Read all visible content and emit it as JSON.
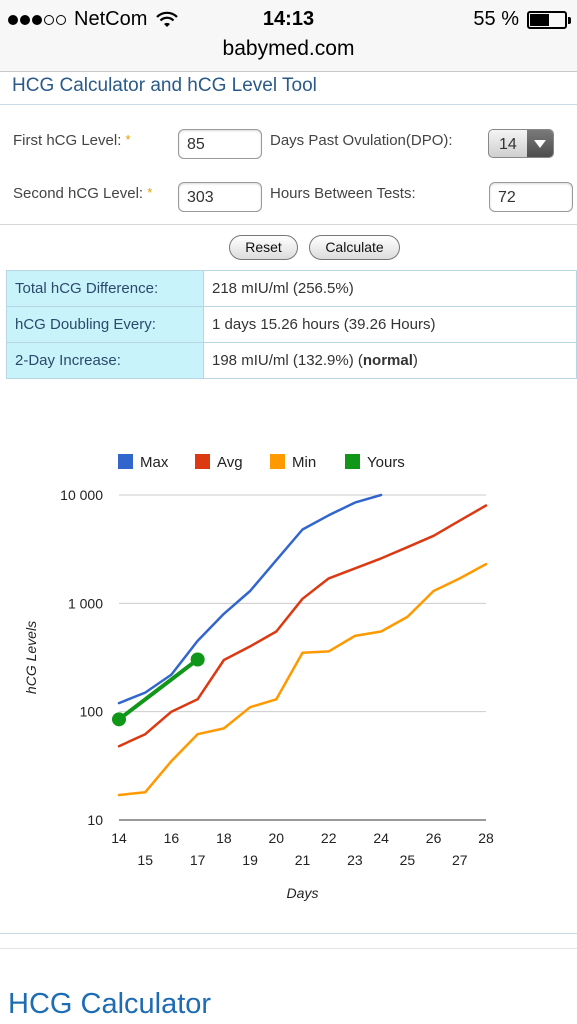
{
  "status_bar": {
    "carrier": "NetCom",
    "time": "14:13",
    "battery_pct": "55 %",
    "battery_level": 0.55,
    "signal_bars": 3,
    "signal_total": 5
  },
  "url": "babymed.com",
  "tool_title": "HCG Calculator and hCG Level Tool",
  "form": {
    "first_label": "First hCG Level:",
    "first_value": "85",
    "dpo_label": "Days Past Ovulation(DPO):",
    "dpo_value": "14",
    "second_label": "Second hCG Level:",
    "second_value": "303",
    "hours_label": "Hours Between Tests:",
    "hours_value": "72",
    "required_mark": "*"
  },
  "buttons": {
    "reset": "Reset",
    "calculate": "Calculate"
  },
  "results": [
    {
      "label": "Total hCG Difference:",
      "value": "218 mIU/ml (256.5%)"
    },
    {
      "label": "hCG Doubling Every:",
      "value": "1 days 15.26 hours (39.26 Hours)"
    },
    {
      "label": "2-Day Increase:",
      "value_prefix": "198 mIU/ml (132.9%) (",
      "value_bold": "normal",
      "value_suffix": ")"
    }
  ],
  "chart_data": {
    "type": "line",
    "xlabel": "Days",
    "ylabel": "hCG Levels",
    "y_scale": "log",
    "ylim": [
      10,
      10000
    ],
    "y_ticks": [
      10,
      100,
      1000,
      10000
    ],
    "y_tick_labels": [
      "10",
      "100",
      "1 000",
      "10 000"
    ],
    "xlim": [
      14,
      28
    ],
    "x_ticks_upper": [
      "14",
      "16",
      "18",
      "20",
      "22",
      "24",
      "26",
      "28"
    ],
    "x_ticks_lower": [
      "15",
      "17",
      "19",
      "21",
      "23",
      "25",
      "27"
    ],
    "grid": true,
    "legend_position": "top",
    "series": [
      {
        "name": "Max",
        "color": "#3366cc",
        "x": [
          14,
          15,
          16,
          17,
          18,
          19,
          20,
          21,
          22,
          23,
          24
        ],
        "values": [
          120,
          150,
          220,
          450,
          800,
          1300,
          2500,
          4800,
          6500,
          8500,
          10000
        ]
      },
      {
        "name": "Avg",
        "color": "#dc3912",
        "x": [
          14,
          15,
          16,
          17,
          18,
          19,
          20,
          21,
          22,
          23,
          24,
          25,
          26,
          27,
          28
        ],
        "values": [
          48,
          62,
          100,
          130,
          300,
          400,
          550,
          1100,
          1700,
          2100,
          2600,
          3300,
          4200,
          5800,
          8000
        ]
      },
      {
        "name": "Min",
        "color": "#ff9900",
        "x": [
          14,
          15,
          16,
          17,
          18,
          19,
          20,
          21,
          22,
          23,
          24,
          25,
          26,
          27,
          28
        ],
        "values": [
          17,
          18,
          35,
          62,
          70,
          110,
          130,
          350,
          360,
          500,
          550,
          750,
          1300,
          1700,
          2300
        ]
      },
      {
        "name": "Yours",
        "color": "#109618",
        "x": [
          14,
          17
        ],
        "values": [
          85,
          303
        ]
      }
    ]
  },
  "page_heading": "HCG Calculator"
}
